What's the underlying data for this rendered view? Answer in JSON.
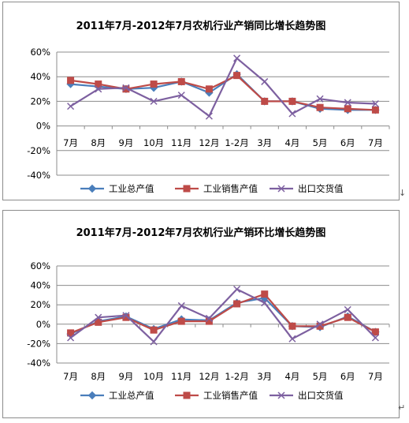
{
  "colors": {
    "industrial_output": "#4a7ebb",
    "sales_output": "#be4b48",
    "export_delivery": "#7d60a0",
    "gridline": "#8c8c8c",
    "axis": "#8c8c8c",
    "text": "#000000"
  },
  "marks": {
    "right_edge_mark": "↓",
    "bottom_right_mark": "↵"
  },
  "chart_data": [
    {
      "type": "line",
      "title": "2011年7月-2012年7月农机行业产销同比增长趋势图",
      "categories": [
        "7月",
        "8月",
        "9月",
        "10月",
        "11月",
        "12月",
        "1-2月",
        "3月",
        "4月",
        "5月",
        "6月",
        "7月"
      ],
      "yticks": [
        "60%",
        "40%",
        "20%",
        "0%",
        "-20%",
        "-40%"
      ],
      "ylim": [
        -40,
        60
      ],
      "y_unit": "%",
      "grid": true,
      "legend_position": "bottom",
      "series": [
        {
          "name": "工业总产值",
          "marker": "diamond",
          "values": [
            34,
            32,
            30,
            31,
            36,
            27,
            42,
            20,
            20,
            14,
            13,
            13
          ]
        },
        {
          "name": "工业销售产值",
          "marker": "square",
          "values": [
            37,
            34,
            30,
            34,
            36,
            30,
            41,
            20,
            20,
            15,
            14,
            13
          ]
        },
        {
          "name": "出口交货值",
          "marker": "x",
          "values": [
            16,
            30,
            31,
            20,
            25,
            8,
            55,
            36,
            10,
            22,
            19,
            18
          ]
        }
      ]
    },
    {
      "type": "line",
      "title": "2011年7月-2012年7月农机行业产销环比增长趋势图",
      "categories": [
        "7月",
        "8月",
        "9月",
        "10月",
        "11月",
        "12月",
        "1-2月",
        "3月",
        "4月",
        "5月",
        "6月",
        "7月"
      ],
      "yticks": [
        "60%",
        "40%",
        "20%",
        "0%",
        "-20%",
        "-40%"
      ],
      "ylim": [
        -40,
        60
      ],
      "y_unit": "%",
      "grid": true,
      "legend_position": "bottom",
      "series": [
        {
          "name": "工业总产值",
          "marker": "diamond",
          "values": [
            -10,
            3,
            8,
            -5,
            5,
            4,
            22,
            27,
            -2,
            -3,
            8,
            -8
          ]
        },
        {
          "name": "工业销售产值",
          "marker": "square",
          "values": [
            -9,
            2,
            7,
            -6,
            3,
            3,
            21,
            31,
            -2,
            -2,
            7,
            -8
          ]
        },
        {
          "name": "出口交货值",
          "marker": "x",
          "values": [
            -14,
            7,
            9,
            -18,
            19,
            6,
            36,
            22,
            -15,
            0,
            15,
            -14
          ]
        }
      ]
    }
  ]
}
